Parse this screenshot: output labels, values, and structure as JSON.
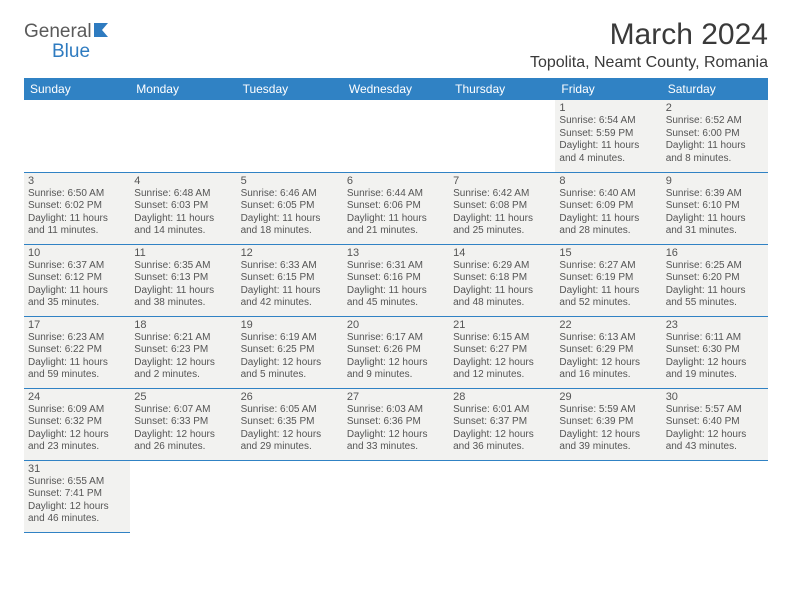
{
  "logo": {
    "general": "General",
    "blue": "Blue"
  },
  "title": "March 2024",
  "location": "Topolita, Neamt County, Romania",
  "colors": {
    "header_bg": "#3082c4",
    "header_text": "#ffffff",
    "cell_bg": "#f2f2f0",
    "border": "#3082c4",
    "text": "#555555"
  },
  "weekdays": [
    "Sunday",
    "Monday",
    "Tuesday",
    "Wednesday",
    "Thursday",
    "Friday",
    "Saturday"
  ],
  "weeks": [
    [
      null,
      null,
      null,
      null,
      null,
      {
        "n": "1",
        "sr": "6:54 AM",
        "ss": "5:59 PM",
        "dl": "11 hours and 4 minutes."
      },
      {
        "n": "2",
        "sr": "6:52 AM",
        "ss": "6:00 PM",
        "dl": "11 hours and 8 minutes."
      }
    ],
    [
      {
        "n": "3",
        "sr": "6:50 AM",
        "ss": "6:02 PM",
        "dl": "11 hours and 11 minutes."
      },
      {
        "n": "4",
        "sr": "6:48 AM",
        "ss": "6:03 PM",
        "dl": "11 hours and 14 minutes."
      },
      {
        "n": "5",
        "sr": "6:46 AM",
        "ss": "6:05 PM",
        "dl": "11 hours and 18 minutes."
      },
      {
        "n": "6",
        "sr": "6:44 AM",
        "ss": "6:06 PM",
        "dl": "11 hours and 21 minutes."
      },
      {
        "n": "7",
        "sr": "6:42 AM",
        "ss": "6:08 PM",
        "dl": "11 hours and 25 minutes."
      },
      {
        "n": "8",
        "sr": "6:40 AM",
        "ss": "6:09 PM",
        "dl": "11 hours and 28 minutes."
      },
      {
        "n": "9",
        "sr": "6:39 AM",
        "ss": "6:10 PM",
        "dl": "11 hours and 31 minutes."
      }
    ],
    [
      {
        "n": "10",
        "sr": "6:37 AM",
        "ss": "6:12 PM",
        "dl": "11 hours and 35 minutes."
      },
      {
        "n": "11",
        "sr": "6:35 AM",
        "ss": "6:13 PM",
        "dl": "11 hours and 38 minutes."
      },
      {
        "n": "12",
        "sr": "6:33 AM",
        "ss": "6:15 PM",
        "dl": "11 hours and 42 minutes."
      },
      {
        "n": "13",
        "sr": "6:31 AM",
        "ss": "6:16 PM",
        "dl": "11 hours and 45 minutes."
      },
      {
        "n": "14",
        "sr": "6:29 AM",
        "ss": "6:18 PM",
        "dl": "11 hours and 48 minutes."
      },
      {
        "n": "15",
        "sr": "6:27 AM",
        "ss": "6:19 PM",
        "dl": "11 hours and 52 minutes."
      },
      {
        "n": "16",
        "sr": "6:25 AM",
        "ss": "6:20 PM",
        "dl": "11 hours and 55 minutes."
      }
    ],
    [
      {
        "n": "17",
        "sr": "6:23 AM",
        "ss": "6:22 PM",
        "dl": "11 hours and 59 minutes."
      },
      {
        "n": "18",
        "sr": "6:21 AM",
        "ss": "6:23 PM",
        "dl": "12 hours and 2 minutes."
      },
      {
        "n": "19",
        "sr": "6:19 AM",
        "ss": "6:25 PM",
        "dl": "12 hours and 5 minutes."
      },
      {
        "n": "20",
        "sr": "6:17 AM",
        "ss": "6:26 PM",
        "dl": "12 hours and 9 minutes."
      },
      {
        "n": "21",
        "sr": "6:15 AM",
        "ss": "6:27 PM",
        "dl": "12 hours and 12 minutes."
      },
      {
        "n": "22",
        "sr": "6:13 AM",
        "ss": "6:29 PM",
        "dl": "12 hours and 16 minutes."
      },
      {
        "n": "23",
        "sr": "6:11 AM",
        "ss": "6:30 PM",
        "dl": "12 hours and 19 minutes."
      }
    ],
    [
      {
        "n": "24",
        "sr": "6:09 AM",
        "ss": "6:32 PM",
        "dl": "12 hours and 23 minutes."
      },
      {
        "n": "25",
        "sr": "6:07 AM",
        "ss": "6:33 PM",
        "dl": "12 hours and 26 minutes."
      },
      {
        "n": "26",
        "sr": "6:05 AM",
        "ss": "6:35 PM",
        "dl": "12 hours and 29 minutes."
      },
      {
        "n": "27",
        "sr": "6:03 AM",
        "ss": "6:36 PM",
        "dl": "12 hours and 33 minutes."
      },
      {
        "n": "28",
        "sr": "6:01 AM",
        "ss": "6:37 PM",
        "dl": "12 hours and 36 minutes."
      },
      {
        "n": "29",
        "sr": "5:59 AM",
        "ss": "6:39 PM",
        "dl": "12 hours and 39 minutes."
      },
      {
        "n": "30",
        "sr": "5:57 AM",
        "ss": "6:40 PM",
        "dl": "12 hours and 43 minutes."
      }
    ],
    [
      {
        "n": "31",
        "sr": "6:55 AM",
        "ss": "7:41 PM",
        "dl": "12 hours and 46 minutes."
      },
      null,
      null,
      null,
      null,
      null,
      null
    ]
  ],
  "labels": {
    "sunrise": "Sunrise:",
    "sunset": "Sunset:",
    "daylight": "Daylight:"
  }
}
